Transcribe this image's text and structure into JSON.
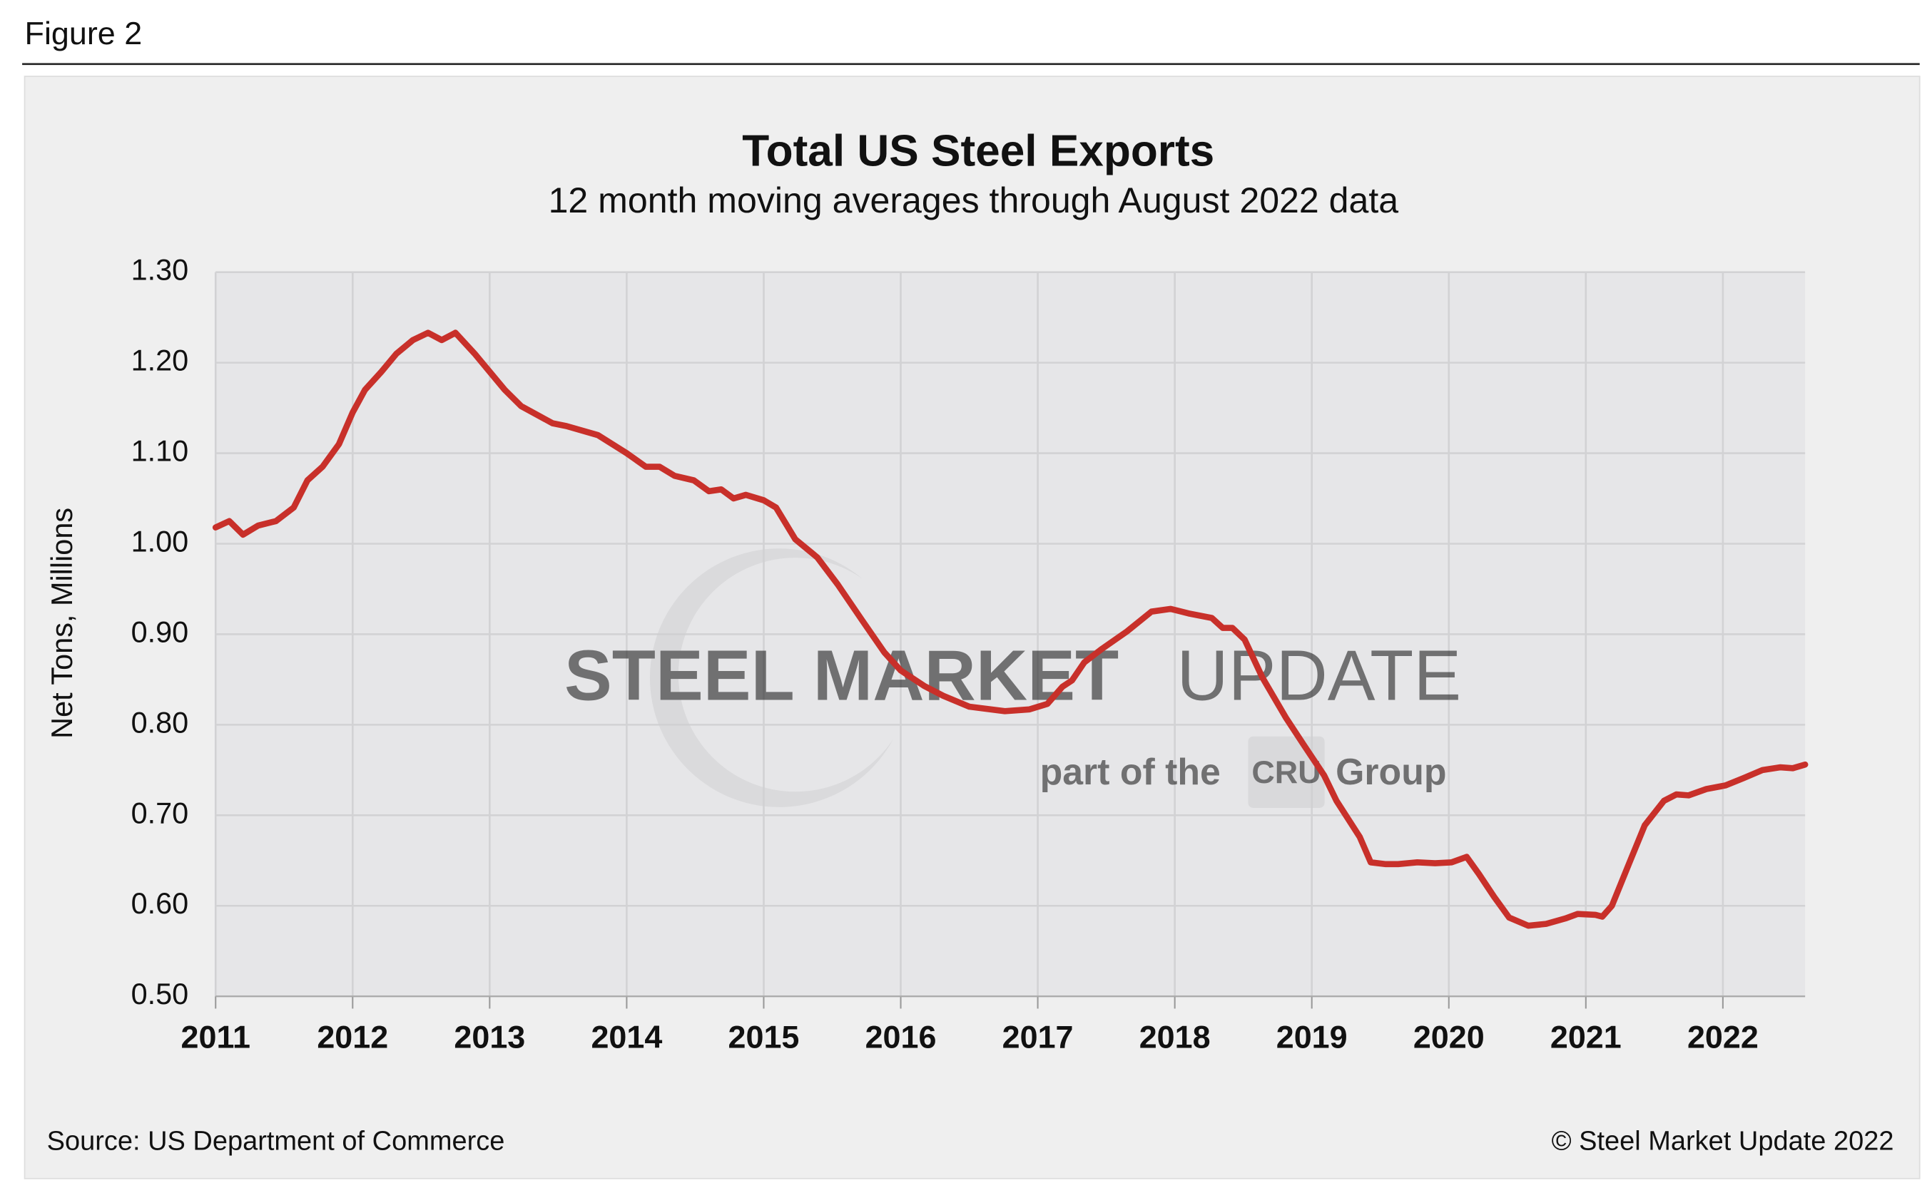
{
  "figure_label": "Figure 2",
  "footer": {
    "source": "Source: US Department of Commerce",
    "credit": "© Steel Market Update 2022"
  },
  "watermark": {
    "brand_bold": "STEEL MARKET",
    "brand_light": "UPDATE",
    "tagline_before": "part of the",
    "logo": "CRU",
    "tagline_after": "Group"
  },
  "chart_data": {
    "type": "line",
    "title": "Total US Steel Exports",
    "subtitle": "12 month moving averages through August 2022 data",
    "y_label": "Net Tons, Millions",
    "color": "#c8302a",
    "grid": true,
    "xlim": [
      2011,
      2022.6
    ],
    "xticks": [
      2011,
      2012,
      2013,
      2014,
      2015,
      2016,
      2017,
      2018,
      2019,
      2020,
      2021,
      2022
    ],
    "ylim": [
      0.5,
      1.3
    ],
    "yticks": [
      {
        "value": 0.5,
        "label": "0.50"
      },
      {
        "value": 0.6,
        "label": "0.60"
      },
      {
        "value": 0.7,
        "label": "0.70"
      },
      {
        "value": 0.8,
        "label": "0.80"
      },
      {
        "value": 0.9,
        "label": "0.90"
      },
      {
        "value": 1.0,
        "label": "1.00"
      },
      {
        "value": 1.1,
        "label": "1.10"
      },
      {
        "value": 1.2,
        "label": "1.20"
      },
      {
        "value": 1.3,
        "label": "1.30"
      }
    ],
    "x": [
      2011.0,
      2011.1,
      2011.2,
      2011.31,
      2011.44,
      2011.57,
      2011.67,
      2011.78,
      2011.9,
      2012.0,
      2012.09,
      2012.21,
      2012.32,
      2012.44,
      2012.55,
      2012.65,
      2012.75,
      2012.89,
      2013.0,
      2013.11,
      2013.23,
      2013.46,
      2013.56,
      2013.79,
      2014.0,
      2014.14,
      2014.24,
      2014.35,
      2014.49,
      2014.6,
      2014.69,
      2014.78,
      2014.87,
      2015.0,
      2015.09,
      2015.23,
      2015.39,
      2015.54,
      2015.72,
      2015.88,
      2016.0,
      2016.17,
      2016.31,
      2016.5,
      2016.76,
      2016.94,
      2017.07,
      2017.18,
      2017.25,
      2017.34,
      2017.47,
      2017.65,
      2017.83,
      2017.97,
      2018.1,
      2018.27,
      2018.35,
      2018.42,
      2018.51,
      2018.64,
      2018.81,
      2018.94,
      2019.09,
      2019.18,
      2019.35,
      2019.43,
      2019.54,
      2019.63,
      2019.77,
      2019.9,
      2020.02,
      2020.13,
      2020.22,
      2020.33,
      2020.44,
      2020.58,
      2020.71,
      2020.85,
      2020.94,
      2021.07,
      2021.12,
      2021.19,
      2021.3,
      2021.43,
      2021.57,
      2021.66,
      2021.75,
      2021.88,
      2022.02,
      2022.15,
      2022.29,
      2022.42,
      2022.51,
      2022.6
    ],
    "values": [
      1.018,
      1.025,
      1.01,
      1.02,
      1.025,
      1.04,
      1.07,
      1.085,
      1.11,
      1.145,
      1.17,
      1.19,
      1.21,
      1.225,
      1.233,
      1.225,
      1.233,
      1.21,
      1.19,
      1.17,
      1.152,
      1.133,
      1.13,
      1.12,
      1.1,
      1.085,
      1.085,
      1.075,
      1.07,
      1.058,
      1.06,
      1.05,
      1.054,
      1.048,
      1.04,
      1.005,
      0.985,
      0.955,
      0.915,
      0.88,
      0.86,
      0.843,
      0.832,
      0.82,
      0.815,
      0.817,
      0.823,
      0.842,
      0.849,
      0.869,
      0.884,
      0.903,
      0.925,
      0.928,
      0.923,
      0.918,
      0.907,
      0.907,
      0.894,
      0.852,
      0.808,
      0.778,
      0.744,
      0.716,
      0.676,
      0.648,
      0.646,
      0.646,
      0.648,
      0.647,
      0.648,
      0.654,
      0.635,
      0.61,
      0.587,
      0.578,
      0.58,
      0.586,
      0.591,
      0.59,
      0.588,
      0.6,
      0.641,
      0.689,
      0.716,
      0.723,
      0.722,
      0.729,
      0.733,
      0.741,
      0.75,
      0.753,
      0.752,
      0.756
    ]
  }
}
